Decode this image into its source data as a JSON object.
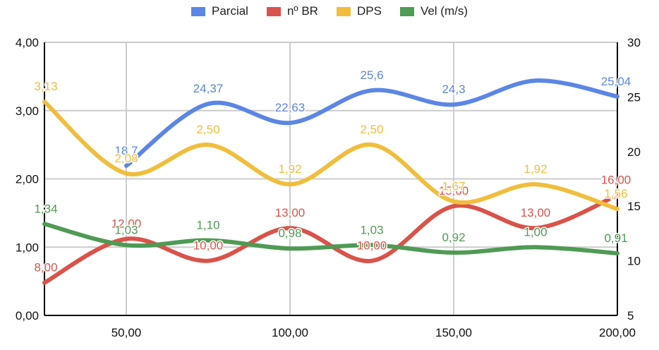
{
  "chart_data": {
    "type": "line",
    "x": [
      25,
      50,
      75,
      100,
      125,
      150,
      175,
      200
    ],
    "x_ticks": [
      "50,00",
      "100,00",
      "150,00",
      "200,00"
    ],
    "x_tick_values": [
      50,
      100,
      150,
      200
    ],
    "xlim": [
      25,
      200
    ],
    "ylim_left": [
      0,
      4
    ],
    "left_ticks": [
      "0,00",
      "1,00",
      "2,00",
      "3,00",
      "4,00"
    ],
    "left_tick_values": [
      0,
      1,
      2,
      3,
      4
    ],
    "ylim_right": [
      5,
      30
    ],
    "right_ticks": [
      "5",
      "10",
      "15",
      "20",
      "25",
      "30"
    ],
    "right_tick_values": [
      5,
      10,
      15,
      20,
      25,
      30
    ],
    "grid": true,
    "legend_position": "top",
    "series": [
      {
        "name": "Parcial",
        "axis": "right",
        "color": "#5b86e5",
        "points": [
          [
            50,
            18.7
          ],
          [
            75,
            24.37
          ],
          [
            100,
            22.63
          ],
          [
            125,
            25.6
          ],
          [
            150,
            24.3
          ],
          [
            175,
            26.5
          ],
          [
            200,
            25.04
          ]
        ],
        "labels": [
          [
            50,
            "18,7"
          ],
          [
            75,
            "24,37"
          ],
          [
            100,
            "22,63"
          ],
          [
            125,
            "25,6"
          ],
          [
            150,
            "24,3"
          ],
          [
            200,
            "25,04"
          ]
        ]
      },
      {
        "name": "nº BR",
        "axis": "right",
        "color": "#d9534a",
        "points": [
          [
            25,
            8.0
          ],
          [
            50,
            12.0
          ],
          [
            75,
            10.0
          ],
          [
            100,
            13.0
          ],
          [
            125,
            10.0
          ],
          [
            150,
            15.0
          ],
          [
            175,
            13.0
          ],
          [
            200,
            16.0
          ]
        ],
        "labels": [
          [
            25,
            "8,00"
          ],
          [
            50,
            "12,00"
          ],
          [
            75,
            "10,00"
          ],
          [
            100,
            "13,00"
          ],
          [
            125,
            "10,00"
          ],
          [
            150,
            "15,00"
          ],
          [
            175,
            "13,00"
          ],
          [
            200,
            "16,00"
          ]
        ]
      },
      {
        "name": "DPS",
        "axis": "left",
        "color": "#f0be3c",
        "points": [
          [
            25,
            3.13
          ],
          [
            50,
            2.08
          ],
          [
            75,
            2.5
          ],
          [
            100,
            1.92
          ],
          [
            125,
            2.5
          ],
          [
            150,
            1.67
          ],
          [
            175,
            1.92
          ],
          [
            200,
            1.56
          ]
        ],
        "labels": [
          [
            25,
            "3,13"
          ],
          [
            50,
            "2,08"
          ],
          [
            75,
            "2,50"
          ],
          [
            100,
            "1,92"
          ],
          [
            125,
            "2,50"
          ],
          [
            150,
            "1,67"
          ],
          [
            175,
            "1,92"
          ],
          [
            200,
            "1,56"
          ]
        ]
      },
      {
        "name": "Vel (m/s)",
        "axis": "left",
        "color": "#4f9a55",
        "points": [
          [
            25,
            1.34
          ],
          [
            50,
            1.03
          ],
          [
            75,
            1.1
          ],
          [
            100,
            0.98
          ],
          [
            125,
            1.03
          ],
          [
            150,
            0.92
          ],
          [
            175,
            1.0
          ],
          [
            200,
            0.91
          ]
        ],
        "labels": [
          [
            25,
            "1,34"
          ],
          [
            50,
            "1,03"
          ],
          [
            75,
            "1,10"
          ],
          [
            100,
            "0,98"
          ],
          [
            125,
            "1,03"
          ],
          [
            150,
            "0,92"
          ],
          [
            175,
            "1,00"
          ],
          [
            200,
            "0,91"
          ]
        ]
      }
    ]
  }
}
